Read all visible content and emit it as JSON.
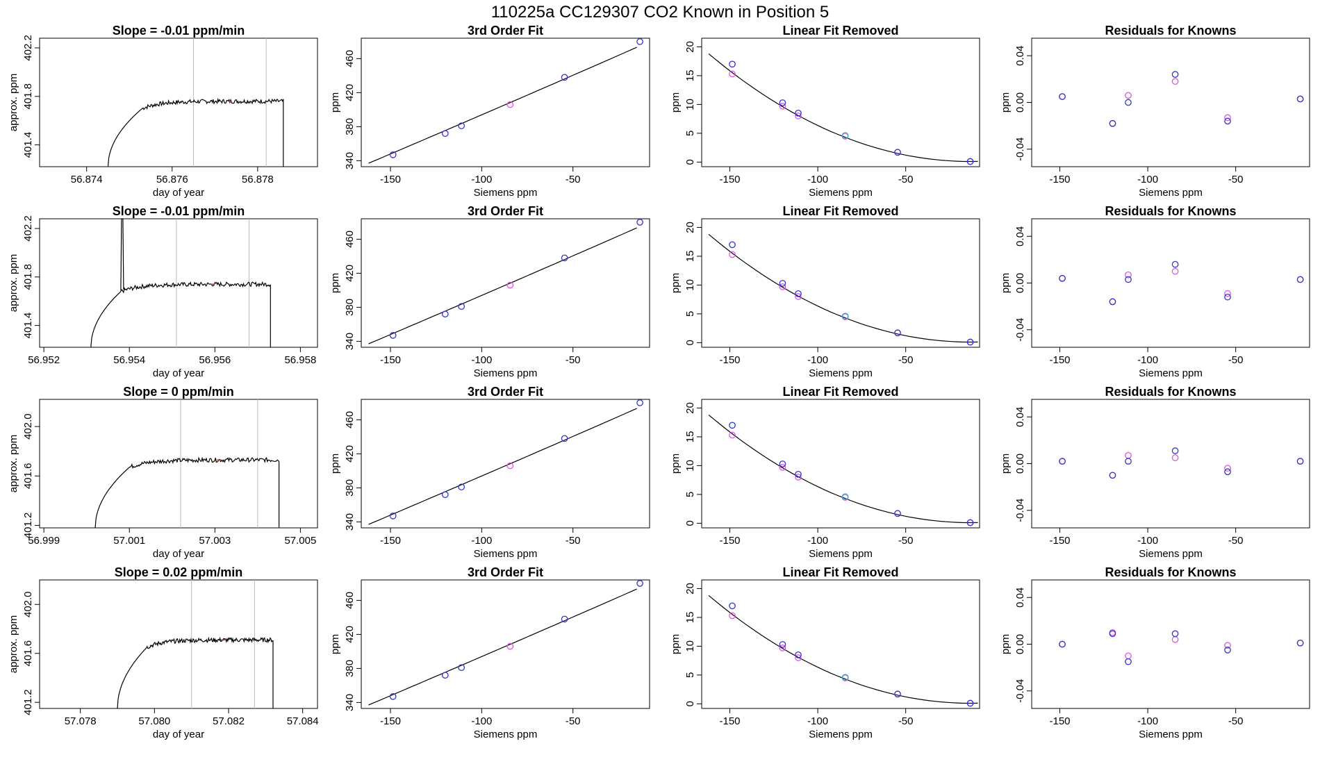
{
  "title": "110225a      CC129307    CO2 Known in Position  5",
  "colors": {
    "line": "#000000",
    "known_blue": "#3333cc",
    "known_magenta": "#dd55dd",
    "known_cyan": "#33aacc",
    "red_mark": "#cc3333",
    "vline": "#bbbbbb"
  },
  "fit_x": [
    -148.6,
    -120.0,
    -111.1,
    -84.4,
    -54.6,
    -13.3
  ],
  "fit_y": [
    347,
    372,
    381,
    406,
    438,
    480
  ],
  "lin_removed_blue": [
    17.0,
    10.3,
    8.5,
    4.6,
    1.7,
    0.1
  ],
  "lin_removed_magenta": [
    15.3,
    9.7,
    8.0,
    4.5,
    1.7,
    0.1
  ],
  "rows": [
    {
      "slope_title": "Slope =  -0.01  ppm/min",
      "xlabel": "day of year",
      "ylabel": "approx. ppm",
      "xticks": [
        "56.874",
        "56.876",
        "56.878"
      ],
      "xtick_values": [
        56.874,
        56.876,
        56.878
      ],
      "xlim": [
        56.8729,
        56.8794
      ],
      "yticks": [
        "401.4",
        "401.8",
        "402.2"
      ],
      "ytick_values": [
        401.4,
        401.8,
        402.2
      ],
      "ylim": [
        401.22,
        402.28
      ],
      "vlines": [
        56.8765,
        56.8782
      ],
      "ts_start": 56.8745,
      "ts_rise_end": 56.8753,
      "ts_end": 56.8786,
      "ts_plateau": 401.76,
      "spike_at": null,
      "residuals_blue": [
        0.005,
        -0.018,
        0.0,
        0.024,
        -0.016,
        0.003
      ],
      "residuals_magenta": [
        0.005,
        -0.018,
        0.006,
        0.018,
        -0.013,
        0.003
      ]
    },
    {
      "slope_title": "Slope =  -0.01  ppm/min",
      "xlabel": "day of year",
      "ylabel": "approx. ppm",
      "xticks": [
        "56.952",
        "56.954",
        "56.956",
        "56.958"
      ],
      "xtick_values": [
        56.952,
        56.954,
        56.956,
        56.958
      ],
      "xlim": [
        56.9519,
        56.9584
      ],
      "yticks": [
        "401.4",
        "401.8",
        "402.2"
      ],
      "ytick_values": [
        401.4,
        401.8,
        402.2
      ],
      "ylim": [
        401.22,
        402.28
      ],
      "vlines": [
        56.9551,
        56.9568
      ],
      "ts_start": 56.9531,
      "ts_rise_end": 56.9538,
      "ts_end": 56.9573,
      "ts_plateau": 401.74,
      "spike_at": 56.9538,
      "residuals_blue": [
        0.004,
        -0.016,
        0.003,
        0.016,
        -0.012,
        0.003
      ],
      "residuals_magenta": [
        0.004,
        -0.016,
        0.007,
        0.01,
        -0.009,
        0.003
      ]
    },
    {
      "slope_title": "Slope =  0  ppm/min",
      "xlabel": "day of year",
      "ylabel": "approx. ppm",
      "xticks": [
        "56.999",
        "57.001",
        "57.003",
        "57.005"
      ],
      "xtick_values": [
        56.999,
        57.001,
        57.003,
        57.005
      ],
      "xlim": [
        56.9989,
        57.0054
      ],
      "yticks": [
        "401.2",
        "401.6",
        "402.0"
      ],
      "ytick_values": [
        401.2,
        401.6,
        402.0
      ],
      "ylim": [
        401.18,
        402.22
      ],
      "vlines": [
        57.0022,
        57.004
      ],
      "ts_start": 57.0002,
      "ts_rise_end": 57.001,
      "ts_end": 57.0045,
      "ts_plateau": 401.73,
      "spike_at": null,
      "residuals_blue": [
        0.002,
        -0.01,
        0.002,
        0.011,
        -0.007,
        0.002
      ],
      "residuals_magenta": [
        0.002,
        -0.01,
        0.007,
        0.005,
        -0.004,
        0.002
      ]
    },
    {
      "slope_title": "Slope =  0.02  ppm/min",
      "xlabel": "day of year",
      "ylabel": "approx. ppm",
      "xticks": [
        "57.078",
        "57.080",
        "57.082",
        "57.084"
      ],
      "xtick_values": [
        57.078,
        57.08,
        57.082,
        57.084
      ],
      "xlim": [
        57.0769,
        57.0844
      ],
      "yticks": [
        "401.2",
        "401.6",
        "402.0"
      ],
      "ytick_values": [
        401.2,
        401.6,
        402.0
      ],
      "ylim": [
        401.15,
        402.2
      ],
      "vlines": [
        57.081,
        57.0827
      ],
      "ts_start": 57.079,
      "ts_rise_end": 57.0798,
      "ts_end": 57.0832,
      "ts_plateau": 401.71,
      "spike_at": null,
      "residuals_blue": [
        0.0,
        0.009,
        -0.015,
        0.009,
        -0.005,
        0.001
      ],
      "residuals_magenta": [
        0.0,
        0.01,
        -0.01,
        0.004,
        -0.001,
        0.001
      ]
    }
  ],
  "fit_panel": {
    "title": "3rd Order Fit",
    "xlabel": "Siemens ppm",
    "ylabel": "ppm",
    "xticks": [
      "-150",
      "-100",
      "-50"
    ],
    "xtick_values": [
      -150,
      -100,
      -50
    ],
    "xlim": [
      -166,
      -8
    ],
    "yticks": [
      "340",
      "380",
      "420",
      "460"
    ],
    "ytick_values": [
      340,
      380,
      420,
      460
    ],
    "ylim": [
      333,
      484
    ]
  },
  "linear_panel": {
    "title": "Linear Fit Removed",
    "xlabel": "Siemens ppm",
    "ylabel": "ppm",
    "xticks": [
      "-150",
      "-100",
      "-50"
    ],
    "xtick_values": [
      -150,
      -100,
      -50
    ],
    "xlim": [
      -166,
      -8
    ],
    "yticks": [
      "0",
      "5",
      "10",
      "15",
      "20"
    ],
    "ytick_values": [
      0,
      5,
      10,
      15,
      20
    ],
    "ylim": [
      -0.8,
      21.5
    ]
  },
  "residual_panel": {
    "title": "Residuals for Knowns",
    "xlabel": "Siemens ppm",
    "ylabel": "ppm",
    "xticks": [
      "-150",
      "-100",
      "-50"
    ],
    "xtick_values": [
      -150,
      -100,
      -50
    ],
    "xlim": [
      -166,
      -8
    ],
    "yticks": [
      "-0.04",
      "0.00",
      "0.04"
    ],
    "ytick_values": [
      -0.04,
      0.0,
      0.04
    ],
    "ylim": [
      -0.055,
      0.055
    ]
  },
  "chart_data": [
    {
      "type": "line",
      "title": "Slope =  -0.01  ppm/min",
      "xlabel": "day of year",
      "ylabel": "approx. ppm",
      "xlim": [
        56.8729,
        56.8794
      ],
      "ylim": [
        401.22,
        402.28
      ],
      "series": [
        {
          "name": "CO2 trace",
          "x": [
            56.8745,
            56.8753,
            56.8786
          ],
          "y": [
            401.2,
            401.7,
            401.76
          ]
        }
      ]
    },
    {
      "type": "line",
      "title": "Slope =  -0.01  ppm/min",
      "xlabel": "day of year",
      "ylabel": "approx. ppm",
      "xlim": [
        56.9519,
        56.9584
      ],
      "ylim": [
        401.22,
        402.28
      ],
      "series": [
        {
          "name": "CO2 trace",
          "x": [
            56.9531,
            56.9538,
            56.9573
          ],
          "y": [
            401.2,
            401.7,
            401.74
          ]
        }
      ]
    },
    {
      "type": "line",
      "title": "Slope =  0  ppm/min",
      "xlabel": "day of year",
      "ylabel": "approx. ppm",
      "xlim": [
        56.9989,
        57.0054
      ],
      "ylim": [
        401.18,
        402.22
      ],
      "series": [
        {
          "name": "CO2 trace",
          "x": [
            57.0002,
            57.001,
            57.0045
          ],
          "y": [
            401.2,
            401.7,
            401.73
          ]
        }
      ]
    },
    {
      "type": "line",
      "title": "Slope =  0.02  ppm/min",
      "xlabel": "day of year",
      "ylabel": "approx. ppm",
      "xlim": [
        57.0769,
        57.0844
      ],
      "ylim": [
        401.15,
        402.2
      ],
      "series": [
        {
          "name": "CO2 trace",
          "x": [
            57.079,
            57.0798,
            57.0832
          ],
          "y": [
            401.15,
            401.65,
            401.71
          ]
        }
      ]
    },
    {
      "type": "scatter",
      "title": "3rd Order Fit",
      "xlabel": "Siemens ppm",
      "ylabel": "ppm",
      "series": [
        {
          "name": "knowns",
          "x": [
            -148.6,
            -120.0,
            -111.1,
            -84.4,
            -54.6,
            -13.3
          ],
          "y": [
            347,
            372,
            381,
            406,
            438,
            480
          ]
        }
      ]
    },
    {
      "type": "scatter",
      "title": "Linear Fit Removed",
      "xlabel": "Siemens ppm",
      "ylabel": "ppm",
      "series": [
        {
          "name": "blue",
          "x": [
            -148.6,
            -120.0,
            -111.1,
            -84.4,
            -54.6,
            -13.3
          ],
          "y": [
            17.0,
            10.3,
            8.5,
            4.6,
            1.7,
            0.1
          ]
        },
        {
          "name": "magenta",
          "x": [
            -148.6,
            -120.0,
            -111.1,
            -84.4,
            -54.6,
            -13.3
          ],
          "y": [
            15.3,
            9.7,
            8.0,
            4.5,
            1.7,
            0.1
          ]
        }
      ]
    },
    {
      "type": "scatter",
      "title": "Residuals for Knowns",
      "xlabel": "Siemens ppm",
      "ylabel": "ppm",
      "series": [
        {
          "name": "row1 blue",
          "x": [
            -148.6,
            -120.0,
            -111.1,
            -84.4,
            -54.6,
            -13.3
          ],
          "y": [
            0.005,
            -0.018,
            0.0,
            0.024,
            -0.016,
            0.003
          ]
        },
        {
          "name": "row1 magenta",
          "x": [
            -148.6,
            -120.0,
            -111.1,
            -84.4,
            -54.6,
            -13.3
          ],
          "y": [
            0.005,
            -0.018,
            0.006,
            0.018,
            -0.013,
            0.003
          ]
        }
      ]
    }
  ]
}
